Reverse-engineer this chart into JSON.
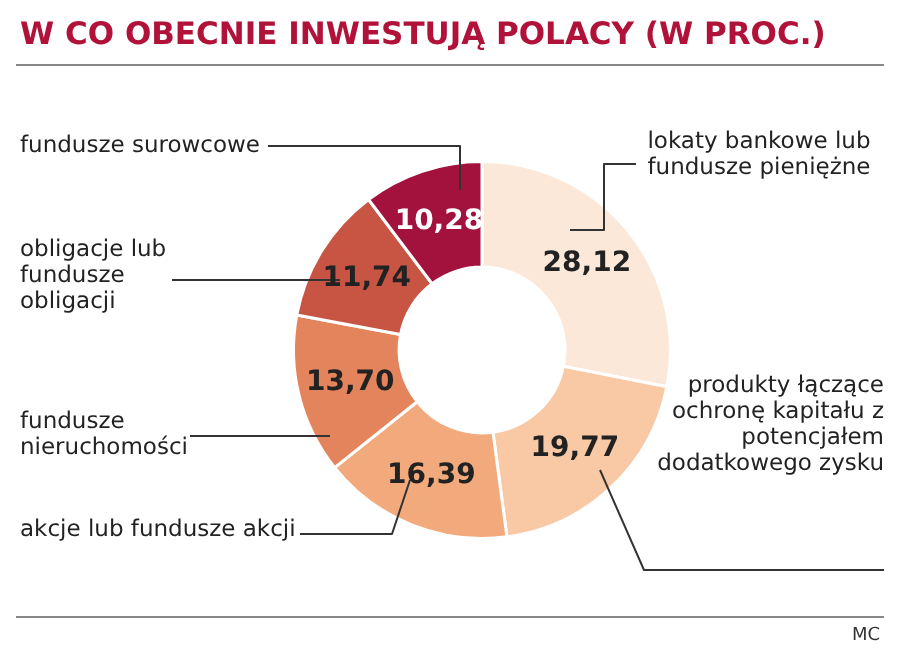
{
  "chart_data": {
    "type": "donut",
    "title": "W CO OBECNIE INWESTUJĄ POLACY (W PROC.)",
    "categories": [
      "lokaty bankowe lub fundusze pieniężne",
      "produkty łączące ochronę kapitału z potencjałem dodatkowego zysku",
      "akcje lub fundusze akcji",
      "fundusze nieruchomości",
      "obligacje lub fundusze obligacji",
      "fundusze surowcowe"
    ],
    "values": [
      28.12,
      19.77,
      16.39,
      13.7,
      11.74,
      10.28
    ],
    "value_labels": [
      "28,12",
      "19,77",
      "16,39",
      "13,70",
      "11,74",
      "10,28"
    ],
    "colors": [
      "#fce8d8",
      "#f8c9a4",
      "#f2aa7c",
      "#e4845c",
      "#c85544",
      "#a3123c"
    ],
    "legend": false,
    "annotations": [
      "MC"
    ]
  }
}
